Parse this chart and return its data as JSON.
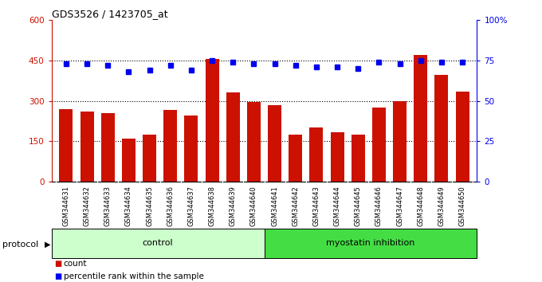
{
  "title": "GDS3526 / 1423705_at",
  "samples": [
    "GSM344631",
    "GSM344632",
    "GSM344633",
    "GSM344634",
    "GSM344635",
    "GSM344636",
    "GSM344637",
    "GSM344638",
    "GSM344639",
    "GSM344640",
    "GSM344641",
    "GSM344642",
    "GSM344643",
    "GSM344644",
    "GSM344645",
    "GSM344646",
    "GSM344647",
    "GSM344648",
    "GSM344649",
    "GSM344650"
  ],
  "counts": [
    270,
    260,
    255,
    160,
    175,
    265,
    245,
    455,
    330,
    295,
    285,
    175,
    200,
    185,
    175,
    275,
    300,
    470,
    395,
    335
  ],
  "percentiles": [
    73,
    73,
    72,
    68,
    69,
    72,
    69,
    75,
    74,
    73,
    73,
    72,
    71,
    71,
    70,
    74,
    73,
    75,
    74,
    74
  ],
  "control_count": 10,
  "bar_color": "#cc1100",
  "dot_color": "#0000ee",
  "control_label": "control",
  "treatment_label": "myostatin inhibition",
  "control_bg": "#ccffcc",
  "treatment_bg": "#44dd44",
  "ylim_left": [
    0,
    600
  ],
  "ylim_right": [
    0,
    100
  ],
  "yticks_left": [
    0,
    150,
    300,
    450,
    600
  ],
  "yticks_right": [
    0,
    25,
    50,
    75,
    100
  ],
  "ytick_labels_left": [
    "0",
    "150",
    "300",
    "450",
    "600"
  ],
  "ytick_labels_right": [
    "0",
    "25",
    "50",
    "75",
    "100%"
  ],
  "hlines": [
    150,
    300,
    450
  ],
  "legend_count_label": "count",
  "legend_pct_label": "percentile rank within the sample",
  "protocol_label": "protocol",
  "background_color": "#ffffff",
  "plot_bg": "#ffffff",
  "xlabel_area_bg": "#d0d0d0"
}
